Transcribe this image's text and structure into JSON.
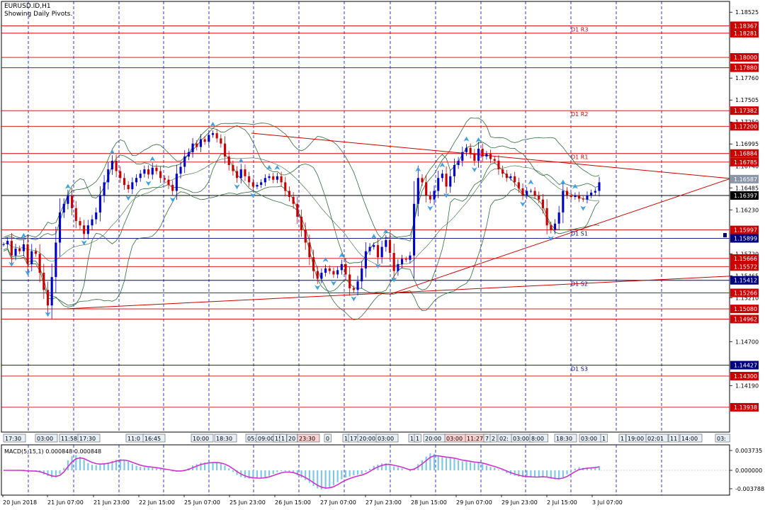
{
  "header": {
    "symbol": "EURUSD.ID,H1",
    "subtitle": "Showing Daily Pivots."
  },
  "chart_data": [
    {
      "type": "line",
      "price_scale": {
        "ticks": [
          "1.18525",
          "1.17760",
          "1.17505",
          "1.17250",
          "1.16995",
          "1.16740",
          "1.16485",
          "1.16230",
          "1.15720",
          "1.15465",
          "1.15210",
          "1.14700",
          "1.14190"
        ]
      },
      "pivots": [
        {
          "label": "D1 R3",
          "values": [
            "1.18367",
            "1.18281"
          ]
        },
        {
          "label": "",
          "values": [
            "1.18000",
            "1.17880"
          ]
        },
        {
          "label": "D1 R2",
          "values": [
            "1.17382",
            "1.17200"
          ]
        },
        {
          "label": "D1 R1",
          "values": [
            "1.16884",
            "1.16785"
          ]
        },
        {
          "label": "D1 S1",
          "values": [
            "1.15997",
            "1.15899"
          ]
        },
        {
          "label": "",
          "values": [
            "1.15666",
            "1.15572"
          ]
        },
        {
          "label": "D1 S2",
          "values": [
            "1.15412",
            "1.15266"
          ]
        },
        {
          "label": "",
          "values": [
            "1.15080",
            "1.14962"
          ]
        },
        {
          "label": "D1 S3",
          "values": [
            "1.14427",
            "1.14300"
          ]
        },
        {
          "label": "",
          "values": [
            "1.13938"
          ]
        }
      ],
      "current_price": "1.16397",
      "bid_marker": "1.16587",
      "time_labels": [
        "20 Jun 2018",
        "21 Jun 07:00",
        "21 Jun 23:00",
        "22 Jun 15:00",
        "25 Jun 07:00",
        "25 Jun 23:00",
        "26 Jun 15:00",
        "27 Jun 07:00",
        "27 Jun 23:00",
        "28 Jun 15:00",
        "29 Jun 07:00",
        "29 Jun 23:00",
        "2 Jul 15:00",
        "3 Jul 07:00"
      ],
      "session_labels": [
        "17:30",
        "03:00",
        "11:58",
        "17:30",
        "11:0",
        "16:45",
        "10:00",
        "18:30",
        "05:",
        "09:00",
        "15",
        "1",
        "20",
        "23:30",
        "0",
        "1",
        "17",
        "20:00",
        "03:00",
        "15",
        "1",
        "20:00",
        "03:00",
        "11:27",
        "7",
        "2",
        "02:",
        "03:00",
        "8:00",
        "18:30",
        "03:00",
        "1",
        "1",
        "19:00",
        "02:01",
        "11",
        "14:00",
        "03:"
      ],
      "close": [
        1.1583,
        1.1587,
        1.157,
        1.1578,
        1.1575,
        1.1583,
        1.156,
        1.1575,
        1.1572,
        1.155,
        1.153,
        1.1512,
        1.1545,
        1.1585,
        1.162,
        1.163,
        1.164,
        1.1625,
        1.161,
        1.1605,
        1.1595,
        1.1605,
        1.1612,
        1.162,
        1.164,
        1.1655,
        1.167,
        1.168,
        1.1668,
        1.166,
        1.1652,
        1.1647,
        1.1655,
        1.166,
        1.1665,
        1.167,
        1.1664,
        1.1672,
        1.1668,
        1.166,
        1.1658,
        1.1652,
        1.1645,
        1.1665,
        1.1673,
        1.1685,
        1.169,
        1.17,
        1.1696,
        1.1705,
        1.1702,
        1.171,
        1.1712,
        1.1706,
        1.17,
        1.1685,
        1.1675,
        1.1668,
        1.166,
        1.167,
        1.1662,
        1.1655,
        1.165,
        1.1652,
        1.1655,
        1.166,
        1.1662,
        1.1658,
        1.1662,
        1.1655,
        1.1645,
        1.1638,
        1.163,
        1.1615,
        1.16,
        1.1585,
        1.1568,
        1.1552,
        1.1543,
        1.155,
        1.1555,
        1.1552,
        1.1548,
        1.1553,
        1.156,
        1.1548,
        1.1532,
        1.153,
        1.154,
        1.1555,
        1.1575,
        1.158,
        1.1582,
        1.1568,
        1.158,
        1.1588,
        1.1573,
        1.1552,
        1.156,
        1.1566,
        1.1565,
        1.157,
        1.163,
        1.166,
        1.1655,
        1.164,
        1.1635,
        1.1645,
        1.166,
        1.1665,
        1.165,
        1.1662,
        1.1675,
        1.168,
        1.169,
        1.1695,
        1.1688,
        1.168,
        1.1694,
        1.1685,
        1.1688,
        1.1682,
        1.168,
        1.167,
        1.1665,
        1.166,
        1.1662,
        1.1655,
        1.1648,
        1.164,
        1.1645,
        1.1645,
        1.164,
        1.1635,
        1.1625,
        1.1605,
        1.16,
        1.1607,
        1.162,
        1.1645,
        1.164,
        1.1638,
        1.164,
        1.1636,
        1.1635,
        1.164,
        1.1643,
        1.1645,
        1.1655
      ],
      "macd": {
        "label": "MACD(5,15,1) 0.000848 0.000848",
        "ticks": [
          "0.003735",
          "0.000000",
          "-0.003788"
        ]
      }
    }
  ]
}
